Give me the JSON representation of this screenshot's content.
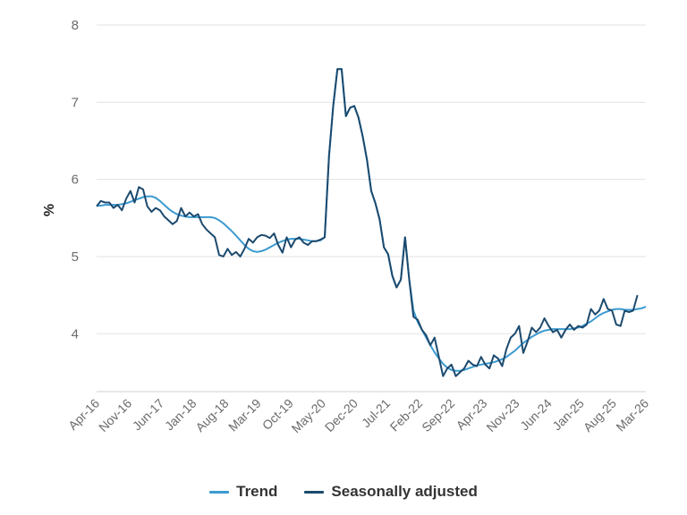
{
  "chart_data": {
    "type": "line",
    "title": "",
    "xlabel": "",
    "ylabel": "%",
    "ylim": [
      3.25,
      8
    ],
    "yticks": [
      4,
      5,
      6,
      7,
      8
    ],
    "x_tick_labels": [
      "Apr-16",
      "Nov-16",
      "Jun-17",
      "Jan-18",
      "Aug-18",
      "Mar-19",
      "Oct-19",
      "May-20",
      "Dec-20",
      "Jul-21",
      "Feb-22",
      "Sep-22",
      "Apr-23",
      "Nov-23",
      "Jun-24",
      "Jan-25",
      "Aug-25",
      "Mar-26"
    ],
    "x_start": "Apr-16",
    "x_end": "Mar-26",
    "grid": true,
    "legend_position": "bottom",
    "series": [
      {
        "name": "Trend",
        "color": "#3b9ad0",
        "values": [
          5.66,
          5.66,
          5.67,
          5.67,
          5.67,
          5.67,
          5.68,
          5.69,
          5.71,
          5.73,
          5.75,
          5.77,
          5.78,
          5.78,
          5.76,
          5.72,
          5.67,
          5.62,
          5.58,
          5.55,
          5.53,
          5.52,
          5.51,
          5.51,
          5.51,
          5.51,
          5.51,
          5.51,
          5.5,
          5.47,
          5.43,
          5.38,
          5.33,
          5.27,
          5.21,
          5.15,
          5.1,
          5.07,
          5.06,
          5.07,
          5.09,
          5.12,
          5.15,
          5.18,
          5.2,
          5.22,
          5.23,
          5.23,
          5.23,
          5.22,
          5.21,
          5.2,
          5.2,
          5.21,
          5.25,
          6.3,
          6.95,
          7.43,
          7.43,
          6.82,
          6.93,
          6.95,
          6.8,
          6.55,
          6.25,
          5.85,
          5.69,
          5.48,
          5.12,
          5.03,
          4.75,
          4.6,
          4.7,
          5.25,
          4.7,
          4.3,
          4.15,
          4.05,
          3.95,
          3.85,
          3.76,
          3.68,
          3.61,
          3.56,
          3.53,
          3.52,
          3.52,
          3.53,
          3.55,
          3.57,
          3.59,
          3.6,
          3.61,
          3.62,
          3.63,
          3.65,
          3.67,
          3.7,
          3.74,
          3.78,
          3.83,
          3.88,
          3.92,
          3.96,
          3.99,
          4.02,
          4.04,
          4.05,
          4.06,
          4.06,
          4.06,
          4.06,
          4.06,
          4.07,
          4.08,
          4.1,
          4.13,
          4.16,
          4.2,
          4.24,
          4.27,
          4.29,
          4.31,
          4.32,
          4.32,
          4.31,
          4.31,
          4.31,
          4.32,
          4.33,
          4.35
        ]
      },
      {
        "name": "Seasonally adjusted",
        "color": "#1c4a6e",
        "values": [
          5.65,
          5.72,
          5.7,
          5.7,
          5.63,
          5.67,
          5.6,
          5.75,
          5.85,
          5.7,
          5.9,
          5.87,
          5.65,
          5.58,
          5.63,
          5.6,
          5.52,
          5.47,
          5.42,
          5.46,
          5.63,
          5.52,
          5.57,
          5.52,
          5.55,
          5.42,
          5.35,
          5.3,
          5.25,
          5.02,
          5.0,
          5.1,
          5.02,
          5.06,
          5.0,
          5.1,
          5.23,
          5.18,
          5.25,
          5.28,
          5.27,
          5.24,
          5.3,
          5.15,
          5.05,
          5.25,
          5.12,
          5.22,
          5.25,
          5.18,
          5.15,
          5.2,
          5.2,
          5.22,
          5.25,
          6.3,
          6.95,
          7.43,
          7.43,
          6.82,
          6.93,
          6.95,
          6.8,
          6.55,
          6.25,
          5.85,
          5.69,
          5.48,
          5.12,
          5.03,
          4.75,
          4.6,
          4.7,
          5.25,
          4.7,
          4.22,
          4.18,
          4.05,
          3.98,
          3.85,
          3.95,
          3.7,
          3.45,
          3.55,
          3.6,
          3.45,
          3.5,
          3.55,
          3.65,
          3.6,
          3.58,
          3.7,
          3.6,
          3.55,
          3.72,
          3.68,
          3.58,
          3.8,
          3.95,
          4.0,
          4.1,
          3.75,
          3.9,
          4.08,
          4.02,
          4.08,
          4.2,
          4.1,
          4.02,
          4.05,
          3.95,
          4.05,
          4.12,
          4.05,
          4.1,
          4.08,
          4.12,
          4.32,
          4.25,
          4.3,
          4.45,
          4.32,
          4.3,
          4.12,
          4.1,
          4.3,
          4.28,
          4.3,
          4.5
        ]
      }
    ]
  }
}
